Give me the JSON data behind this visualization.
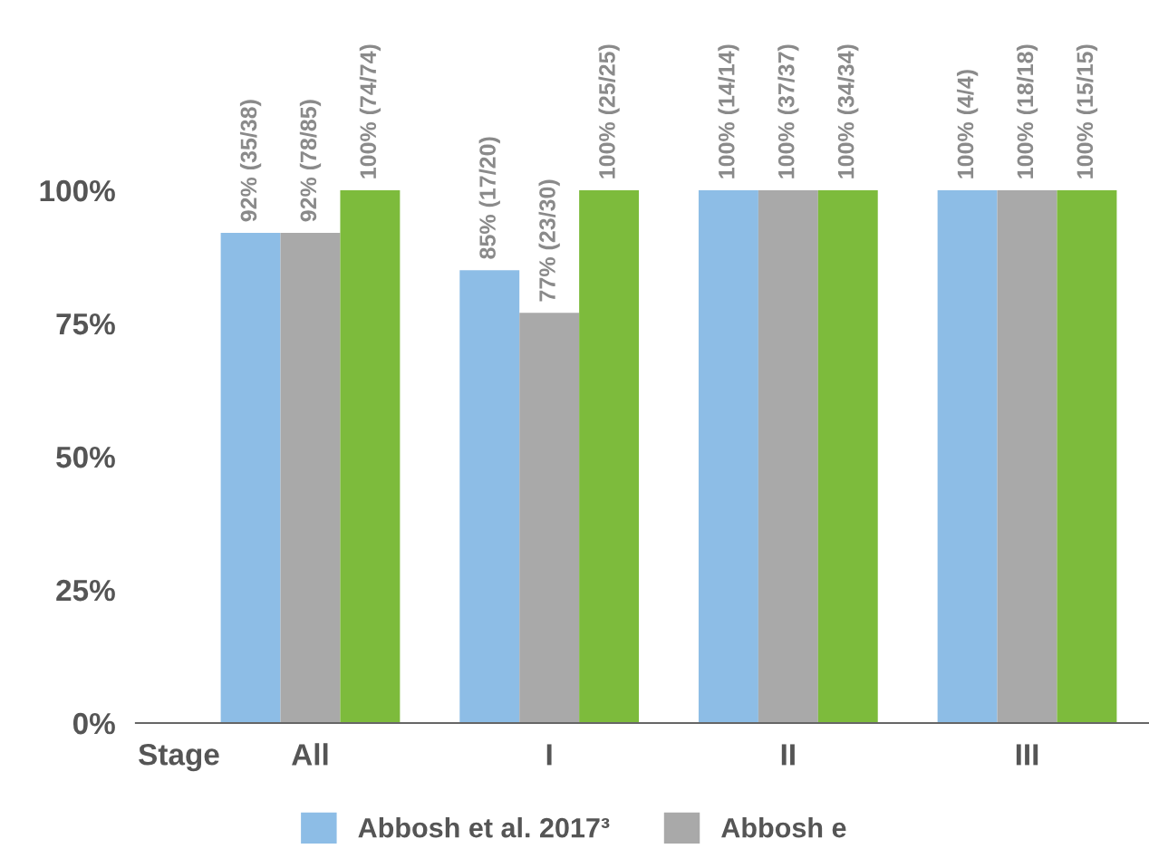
{
  "chart_data": {
    "type": "bar",
    "categories": [
      "All",
      "I",
      "II",
      "III"
    ],
    "series": [
      {
        "name": "Abbosh et al. 2017³",
        "color": "#8dbde6",
        "values": [
          92,
          85,
          100,
          100
        ],
        "value_labels": [
          "92% (35/38)",
          "85% (17/20)",
          "100% (14/14)",
          "100% (4/4)"
        ]
      },
      {
        "name": "Abbosh e",
        "color": "#a9a9a9",
        "values": [
          92,
          77,
          100,
          100
        ],
        "value_labels": [
          "92% (78/85)",
          "77% (23/30)",
          "100% (37/37)",
          "100% (18/18)"
        ]
      },
      {
        "color": "#7dbb3c",
        "values": [
          100,
          100,
          100,
          100
        ],
        "value_labels": [
          "100% (74/74)",
          "100% (25/25)",
          "100% (34/34)",
          "100% (15/15)"
        ]
      }
    ],
    "ylim": [
      0,
      100
    ],
    "yticks": [
      {
        "value": 0,
        "label": "0%"
      },
      {
        "value": 25,
        "label": "25%"
      },
      {
        "value": 50,
        "label": "50%"
      },
      {
        "value": 75,
        "label": "75%"
      },
      {
        "value": 100,
        "label": "100%"
      }
    ],
    "annotations": [
      "Stage"
    ],
    "grid": false,
    "legend": "bottom"
  }
}
